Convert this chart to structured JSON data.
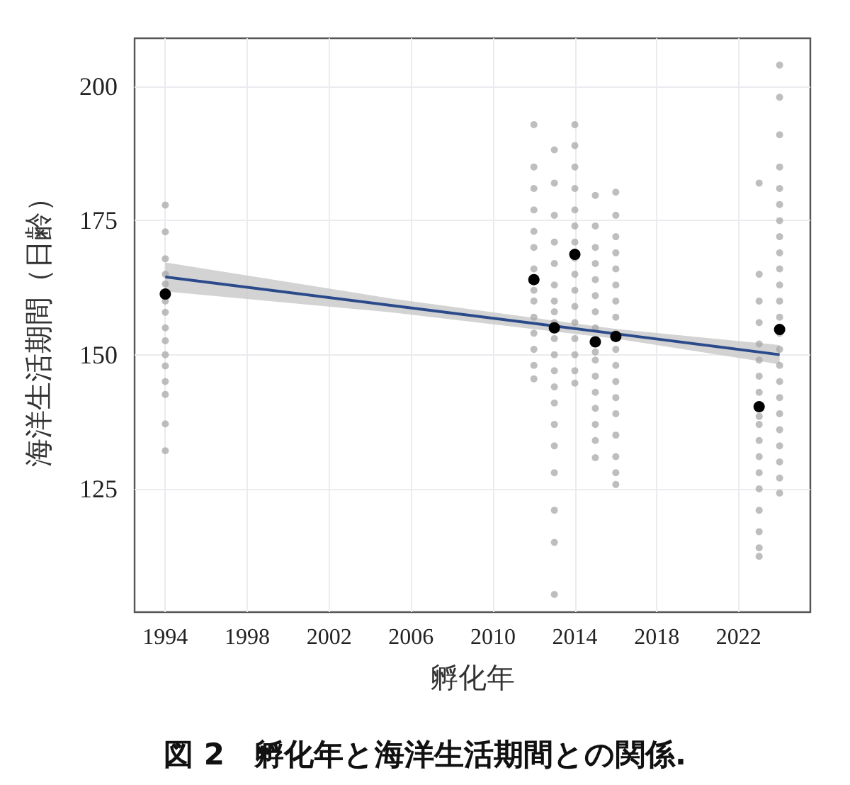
{
  "chart_data": {
    "type": "scatter",
    "title": "図 2　孵化年と海洋生活期間との関係.",
    "xlabel": "孵化年",
    "ylabel": "海洋生活期間（日齢）",
    "xlim": [
      1992.5,
      2025.5
    ],
    "xticks": [
      1994,
      1998,
      2002,
      2006,
      2010,
      2014,
      2018,
      2022
    ],
    "ylim": [
      102,
      209
    ],
    "yticks": [
      125,
      150,
      175,
      200
    ],
    "grid": true,
    "marker": "circle",
    "series": [
      {
        "color": "#a8a8a8",
        "x": [
          1994,
          1994,
          1994,
          1994,
          1994,
          1994,
          1994,
          1994,
          1994,
          1994,
          1994,
          1994,
          1994,
          1994,
          1994,
          2012,
          2012,
          2012,
          2012,
          2012,
          2012,
          2012,
          2012,
          2012,
          2012,
          2012,
          2012,
          2012,
          2012,
          2013,
          2013,
          2013,
          2013,
          2013,
          2013,
          2013,
          2013,
          2013,
          2013,
          2013,
          2013,
          2013,
          2013,
          2013,
          2013,
          2013,
          2013,
          2013,
          2013,
          2014,
          2014,
          2014,
          2014,
          2014,
          2014,
          2014,
          2014,
          2014,
          2014,
          2014,
          2014,
          2014,
          2014,
          2014,
          2014,
          2015,
          2015,
          2015,
          2015,
          2015,
          2015,
          2015,
          2015,
          2015,
          2015,
          2015,
          2015,
          2015,
          2015,
          2015,
          2015,
          2016,
          2016,
          2016,
          2016,
          2016,
          2016,
          2016,
          2016,
          2016,
          2016,
          2016,
          2016,
          2016,
          2016,
          2016,
          2016,
          2016,
          2016,
          2023,
          2023,
          2023,
          2023,
          2023,
          2023,
          2023,
          2023,
          2023,
          2023,
          2023,
          2023,
          2023,
          2023,
          2023,
          2023,
          2023,
          2023,
          2024,
          2024,
          2024,
          2024,
          2024,
          2024,
          2024,
          2024,
          2024,
          2024,
          2024,
          2024,
          2024,
          2024,
          2024,
          2024,
          2024,
          2024,
          2024,
          2024,
          2024,
          2024,
          2024,
          2024
        ],
        "values": [
          177.9,
          172.9,
          167.9,
          165,
          163.2,
          160,
          157.9,
          155,
          152.6,
          150,
          147.9,
          145,
          142.6,
          137.1,
          132.1,
          192.9,
          185,
          181,
          177,
          173,
          170,
          166,
          162,
          160,
          157,
          154,
          151,
          148,
          145.5,
          188.2,
          182,
          176,
          171,
          167,
          163,
          160,
          158,
          156,
          153,
          150,
          147,
          144,
          141,
          137,
          133,
          128,
          121,
          115,
          105.3,
          192.9,
          189,
          185,
          181,
          177,
          174,
          171,
          168,
          165,
          162,
          159,
          156,
          153,
          150,
          147,
          144.7,
          179.7,
          174,
          170,
          167,
          164,
          161,
          158,
          155,
          150.5,
          149,
          146,
          143,
          140,
          137,
          134,
          130.8,
          180.3,
          176,
          172,
          169,
          166,
          163,
          160,
          157,
          154,
          151,
          148,
          145,
          142,
          139,
          135,
          131,
          128,
          125.8,
          182,
          165,
          160,
          156,
          152,
          149,
          146,
          143,
          138.5,
          137,
          134,
          131,
          128,
          125,
          121,
          117,
          114,
          112.4,
          204,
          198,
          191,
          185,
          181,
          178,
          175,
          172,
          169,
          166,
          163,
          160,
          157,
          154,
          151,
          148,
          145,
          142,
          139,
          136,
          133,
          130,
          127,
          124.2
        ]
      },
      {
        "type": "line",
        "color": "#2b4a8b",
        "x": [
          1994,
          2005,
          2016,
          2024
        ],
        "values": [
          164.5,
          159.2,
          153.9,
          150
        ],
        "lower": [
          161.8,
          157.9,
          153.0,
          148.2
        ],
        "upper": [
          167.2,
          160.5,
          154.8,
          151.8
        ],
        "marker": "none"
      },
      {
        "type": "scatter",
        "color": "#000000",
        "x": [
          1994,
          2012,
          2013,
          2014,
          2015,
          2016,
          2023,
          2024
        ],
        "values": [
          161.3,
          164,
          155,
          168.7,
          152.4,
          153.4,
          140.3,
          154.7
        ]
      }
    ]
  }
}
